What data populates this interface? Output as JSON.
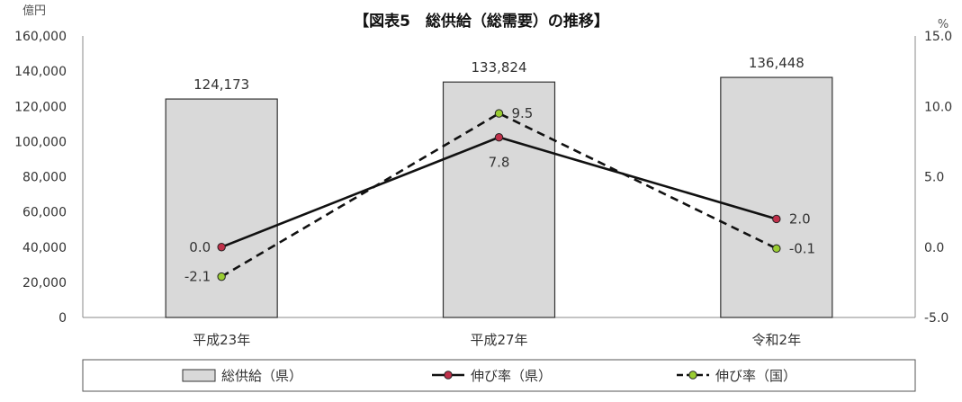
{
  "chart_data": {
    "type": "bar",
    "title": "【図表5　総供給（総需要）の推移】",
    "left_unit": "億円",
    "right_unit": "%",
    "categories": [
      "平成23年",
      "平成27年",
      "令和2年"
    ],
    "y_left": {
      "min": 0,
      "max": 160000,
      "step": 20000,
      "ticks": [
        "0",
        "20,000",
        "40,000",
        "60,000",
        "80,000",
        "100,000",
        "120,000",
        "140,000",
        "160,000"
      ]
    },
    "y_right": {
      "min": -5.0,
      "max": 15.0,
      "step": 5.0,
      "ticks": [
        "-5.0",
        "0.0",
        "5.0",
        "10.0",
        "15.0"
      ]
    },
    "series": [
      {
        "name": "総供給（県）",
        "type": "bar",
        "axis": "left",
        "values": [
          124173,
          133824,
          136448
        ],
        "labels": [
          "124,173",
          "133,824",
          "136,448"
        ],
        "color": "#d9d9d9",
        "edge": "#333333"
      },
      {
        "name": "伸び率（県）",
        "type": "line",
        "axis": "right",
        "style": "solid",
        "values": [
          0.0,
          7.8,
          2.0
        ],
        "labels": [
          "0.0",
          "7.8",
          "2.0"
        ],
        "color": "#111111",
        "marker": "#c0304a"
      },
      {
        "name": "伸び率（国）",
        "type": "line",
        "axis": "right",
        "style": "dashed",
        "values": [
          -2.1,
          9.5,
          -0.1
        ],
        "labels": [
          "-2.1",
          "9.5",
          "-0.1"
        ],
        "color": "#111111",
        "marker": "#9acd32"
      }
    ],
    "grid": false,
    "legend": "bottom"
  }
}
